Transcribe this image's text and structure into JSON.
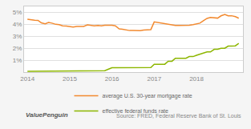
{
  "chart_data": {
    "type": "line",
    "x": [
      2014.0,
      2014.08,
      2014.17,
      2014.25,
      2014.33,
      2014.42,
      2014.5,
      2014.58,
      2014.67,
      2014.75,
      2014.83,
      2014.92,
      2015.0,
      2015.08,
      2015.17,
      2015.25,
      2015.33,
      2015.42,
      2015.5,
      2015.58,
      2015.67,
      2015.75,
      2015.83,
      2015.92,
      2016.0,
      2016.08,
      2016.17,
      2016.25,
      2016.33,
      2016.42,
      2016.5,
      2016.58,
      2016.67,
      2016.75,
      2016.83,
      2016.92,
      2017.0,
      2017.08,
      2017.17,
      2017.25,
      2017.33,
      2017.42,
      2017.5,
      2017.58,
      2017.67,
      2017.75,
      2017.83,
      2017.92,
      2018.0,
      2018.08,
      2018.17,
      2018.25,
      2018.33,
      2018.42,
      2018.5,
      2018.58,
      2018.67,
      2018.75,
      2018.83,
      2018.92,
      2019.0
    ],
    "series": [
      {
        "name": "average U.S. 30-year mortgage rate",
        "color": "#f28a30",
        "values": [
          4.43,
          4.38,
          4.34,
          4.33,
          4.12,
          4.05,
          4.15,
          4.1,
          4.0,
          3.97,
          3.88,
          3.85,
          3.8,
          3.78,
          3.82,
          3.85,
          3.83,
          3.96,
          3.9,
          3.87,
          3.9,
          3.88,
          3.93,
          3.95,
          3.92,
          3.88,
          3.62,
          3.59,
          3.52,
          3.48,
          3.48,
          3.46,
          3.47,
          3.52,
          3.54,
          3.56,
          4.2,
          4.15,
          4.1,
          4.02,
          3.99,
          3.96,
          3.9,
          3.91,
          3.9,
          3.9,
          3.93,
          3.97,
          4.02,
          4.1,
          4.32,
          4.5,
          4.58,
          4.55,
          4.52,
          4.71,
          4.83,
          4.72,
          4.72,
          4.64,
          4.51
        ]
      },
      {
        "name": "effective federal funds rate",
        "color": "#8db600",
        "values": [
          0.07,
          0.07,
          0.07,
          0.08,
          0.08,
          0.08,
          0.08,
          0.08,
          0.08,
          0.08,
          0.08,
          0.08,
          0.1,
          0.1,
          0.1,
          0.1,
          0.1,
          0.1,
          0.12,
          0.12,
          0.12,
          0.12,
          0.12,
          0.25,
          0.37,
          0.37,
          0.37,
          0.37,
          0.37,
          0.38,
          0.38,
          0.38,
          0.38,
          0.38,
          0.38,
          0.38,
          0.66,
          0.66,
          0.66,
          0.66,
          0.91,
          0.91,
          1.16,
          1.16,
          1.16,
          1.16,
          1.3,
          1.3,
          1.41,
          1.5,
          1.58,
          1.69,
          1.69,
          1.91,
          1.91,
          2.0,
          2.0,
          2.18,
          2.18,
          2.2,
          2.4
        ]
      }
    ],
    "xlim": [
      2013.92,
      2019.1
    ],
    "xticks": [
      2014,
      2015,
      2016,
      2017,
      2018
    ],
    "ylim": [
      0,
      5.5
    ],
    "yticks": [
      {
        "value": 1,
        "label": "1%"
      },
      {
        "value": 2,
        "label": "2%"
      },
      {
        "value": 3,
        "label": "3%"
      },
      {
        "value": 4,
        "label": "4%"
      },
      {
        "value": 5,
        "label": "5%"
      }
    ],
    "grid": "y",
    "legend": "bottom",
    "annotations": [
      "ValuePenguin",
      "Source: FRED, Federal Reserve Bank of St. Louis"
    ]
  }
}
